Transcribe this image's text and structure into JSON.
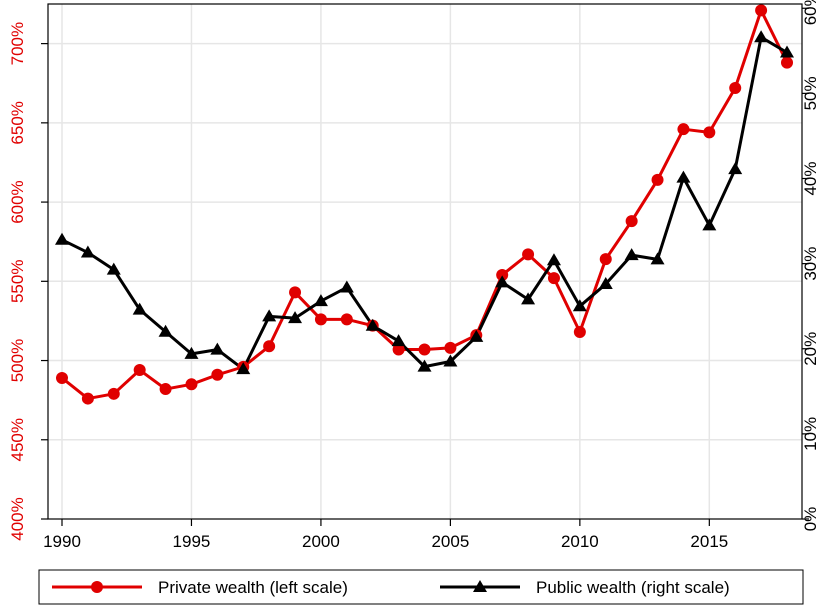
{
  "chart_data": {
    "type": "line",
    "x": [
      1990,
      1991,
      1992,
      1993,
      1994,
      1995,
      1996,
      1997,
      1998,
      1999,
      2000,
      2001,
      2002,
      2003,
      2004,
      2005,
      2006,
      2007,
      2008,
      2009,
      2010,
      2011,
      2012,
      2013,
      2014,
      2015,
      2016,
      2017,
      2018
    ],
    "series": [
      {
        "name": "Private wealth (left scale)",
        "axis": "left",
        "color": "#e00000",
        "marker": "circle",
        "values": [
          489,
          476,
          479,
          494,
          482,
          485,
          491,
          496,
          509,
          543,
          526,
          526,
          522,
          507,
          507,
          508,
          516,
          554,
          567,
          552,
          518,
          564,
          588,
          614,
          646,
          644,
          672,
          721,
          688
        ]
      },
      {
        "name": "Public wealth (right scale)",
        "axis": "right",
        "color": "#000000",
        "marker": "triangle",
        "values": [
          32.8,
          31.3,
          29.3,
          24.6,
          22.0,
          19.4,
          19.9,
          17.6,
          23.8,
          23.6,
          25.6,
          27.2,
          22.7,
          20.9,
          17.9,
          18.5,
          21.4,
          27.8,
          25.8,
          30.4,
          25.0,
          27.6,
          31.0,
          30.5,
          40.1,
          34.5,
          41.1,
          56.6,
          54.8
        ]
      }
    ],
    "x_ticks": [
      "1990",
      "1995",
      "2000",
      "2005",
      "2010",
      "2015"
    ],
    "xlim": [
      1990,
      2018
    ],
    "y_left": {
      "lim": [
        400,
        725
      ],
      "ticks": [
        "400%",
        "450%",
        "500%",
        "550%",
        "600%",
        "650%",
        "700%"
      ],
      "tick_values": [
        400,
        450,
        500,
        550,
        600,
        650,
        700
      ],
      "color": "#e00000"
    },
    "y_right": {
      "lim": [
        0,
        60.5
      ],
      "ticks": [
        "0%",
        "10%",
        "20%",
        "30%",
        "40%",
        "50%",
        "60%"
      ],
      "tick_values": [
        0,
        10,
        20,
        30,
        40,
        50,
        60
      ],
      "color": "#000000"
    },
    "grid": true,
    "legend_position": "bottom"
  }
}
